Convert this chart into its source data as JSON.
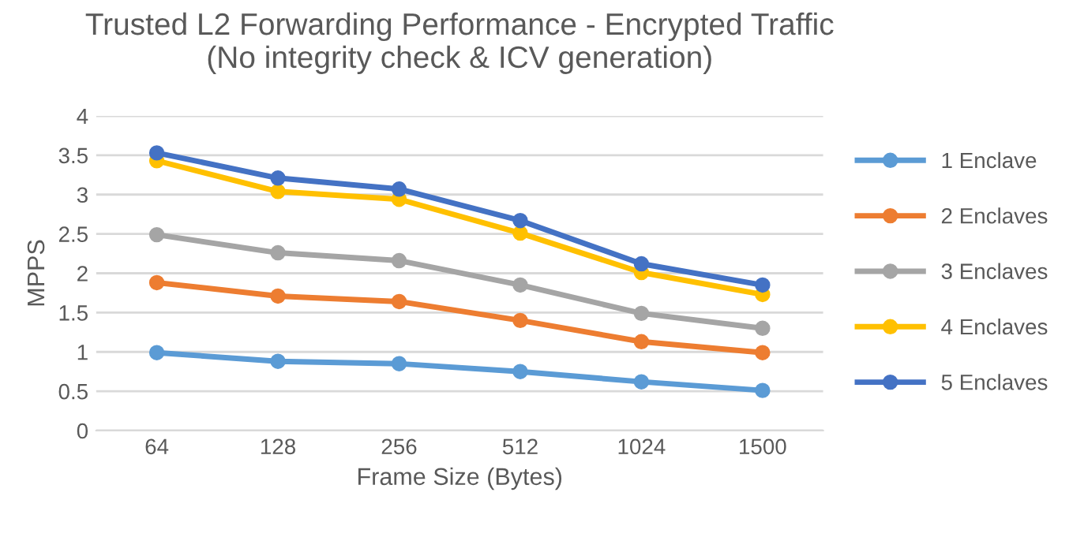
{
  "chart_data": {
    "type": "line",
    "title": "Trusted L2 Forwarding Performance - Encrypted Traffic\n(No integrity check & ICV generation)",
    "xlabel": "Frame Size (Bytes)",
    "ylabel": "MPPS",
    "categories": [
      "64",
      "128",
      "256",
      "512",
      "1024",
      "1500"
    ],
    "series": [
      {
        "name": "1 Enclave",
        "color": "#5b9bd5",
        "values": [
          0.99,
          0.88,
          0.85,
          0.75,
          0.62,
          0.51
        ]
      },
      {
        "name": "2 Enclaves",
        "color": "#ed7d31",
        "values": [
          1.88,
          1.71,
          1.64,
          1.4,
          1.13,
          0.99
        ]
      },
      {
        "name": "3 Enclaves",
        "color": "#a5a5a5",
        "values": [
          2.49,
          2.26,
          2.16,
          1.85,
          1.49,
          1.3
        ]
      },
      {
        "name": "4 Enclaves",
        "color": "#ffc000",
        "values": [
          3.43,
          3.04,
          2.94,
          2.51,
          2.01,
          1.73
        ]
      },
      {
        "name": "5 Enclaves",
        "color": "#4472c4",
        "values": [
          3.53,
          3.21,
          3.07,
          2.67,
          2.12,
          1.85
        ]
      }
    ],
    "ylim": [
      0,
      4
    ],
    "yticks": [
      0,
      0.5,
      1,
      1.5,
      2,
      2.5,
      3,
      3.5,
      4
    ],
    "grid": "y",
    "legend": "right",
    "marker": "circle",
    "line_style": "solid"
  }
}
